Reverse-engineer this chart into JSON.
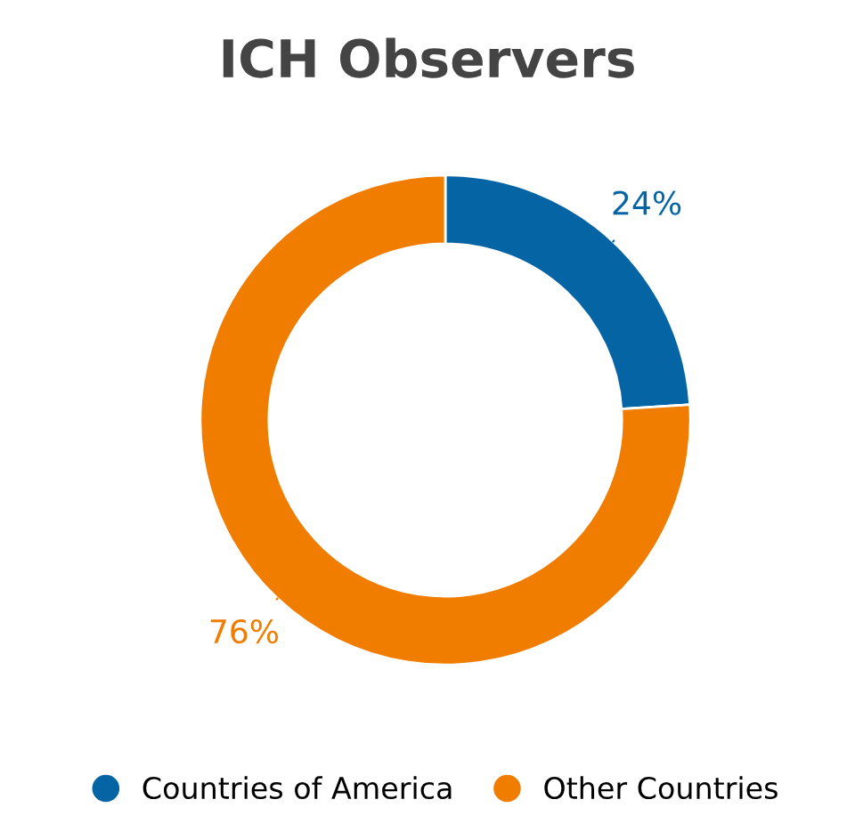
{
  "chart_data": {
    "type": "donut",
    "title": "ICH Observers",
    "categories": [
      "Countries of America",
      "Other Countries"
    ],
    "values": [
      24,
      76
    ],
    "colors": [
      "#0565a4",
      "#f07c00"
    ],
    "value_labels": [
      "24%",
      "76%"
    ],
    "legend": "bottom"
  }
}
